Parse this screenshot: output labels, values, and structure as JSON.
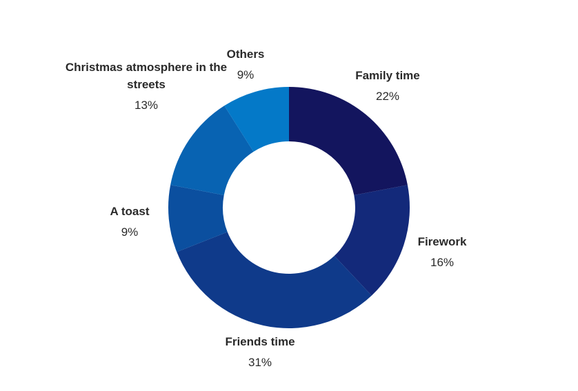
{
  "chart_data": {
    "type": "pie",
    "donut": true,
    "unit": "%",
    "title": "",
    "categories": [
      "Family time",
      "Firework",
      "Friends time",
      "A toast",
      "Christmas atmosphere in the streets",
      "Others"
    ],
    "values": [
      22,
      16,
      31,
      9,
      13,
      9
    ],
    "value_labels": [
      "22%",
      "16%",
      "31%",
      "9%",
      "13%",
      "9%"
    ],
    "colors": [
      "#13155e",
      "#13297a",
      "#0f3a8a",
      "#0b4f9f",
      "#0863b2",
      "#0479c8"
    ],
    "legend": "none",
    "start_angle": "12 o'clock",
    "direction": "clockwise"
  }
}
